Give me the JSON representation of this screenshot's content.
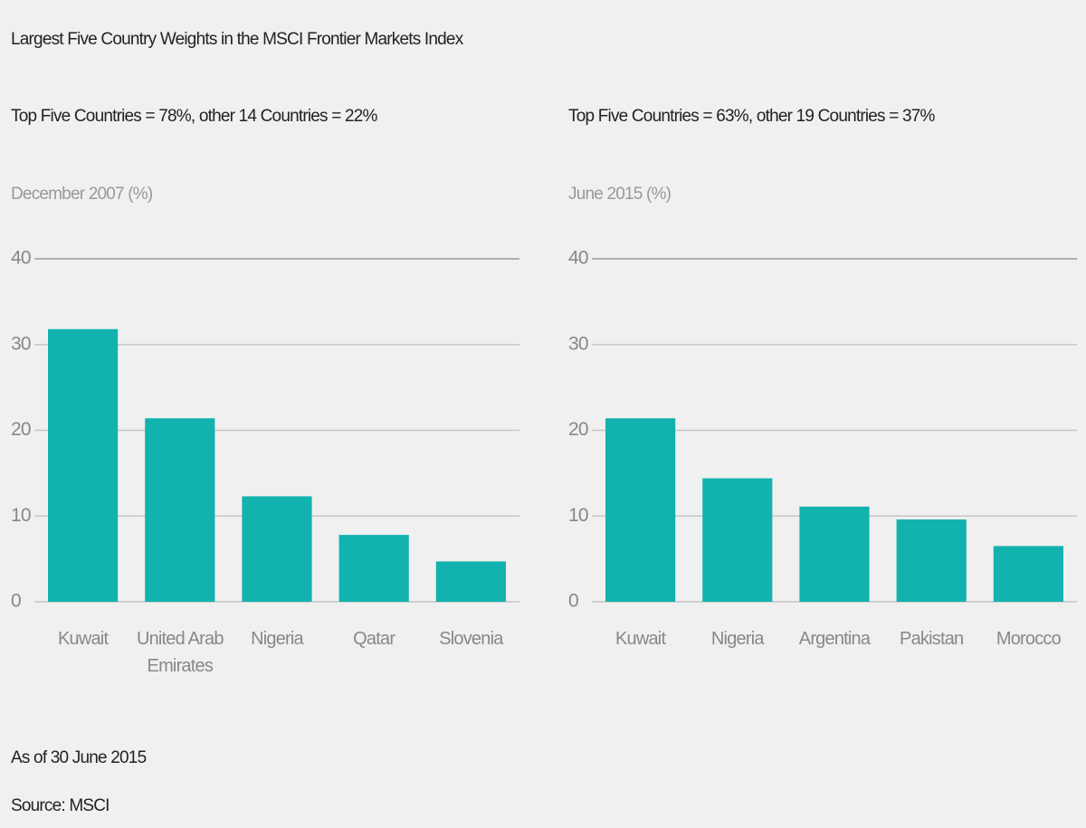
{
  "title": "Largest Five Country Weights in the MSCI Frontier Markets Index",
  "chart_data": [
    {
      "type": "bar",
      "subtitle": "Top Five Countries = 78%, other 14 Countries = 22%",
      "ylabel": "December 2007 (%)",
      "categories": [
        "Kuwait",
        "United Arab Emirates",
        "Nigeria",
        "Qatar",
        "Slovenia"
      ],
      "values": [
        31.8,
        21.4,
        12.3,
        7.8,
        4.7
      ],
      "color": "#12b2ae",
      "ylim": [
        0,
        40
      ],
      "yticks": [
        0,
        10,
        20,
        30,
        40
      ],
      "grid": true
    },
    {
      "type": "bar",
      "subtitle": "Top Five Countries = 63%, other 19 Countries = 37%",
      "ylabel": "June 2015 (%)",
      "categories": [
        "Kuwait",
        "Nigeria",
        "Argentina",
        "Pakistan",
        "Morocco"
      ],
      "values": [
        21.4,
        14.4,
        11.1,
        9.6,
        6.5
      ],
      "color": "#12b2ae",
      "ylim": [
        0,
        40
      ],
      "yticks": [
        0,
        10,
        20,
        30,
        40
      ],
      "grid": true
    }
  ],
  "footnotes": [
    "As of 30 June 2015",
    "Source: MSCI"
  ]
}
